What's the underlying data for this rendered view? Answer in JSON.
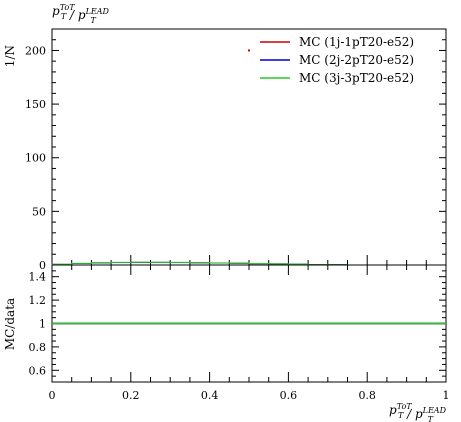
{
  "chart_data": [
    {
      "type": "line",
      "panel": "main",
      "title": "p_T^{ToT} / p_T^{LEAD}",
      "ylabel": "1/N",
      "ylim": [
        0,
        220
      ],
      "yticks": [
        0,
        50,
        100,
        150,
        200
      ],
      "xlim": [
        0,
        1
      ],
      "legend_position": "top-right",
      "series": [
        {
          "name": "MC (1j-1pT20-e52)",
          "color": "#cc0000",
          "x": [
            0.025,
            0.075,
            0.125,
            0.175,
            0.225,
            0.275,
            0.325,
            0.375,
            0.425,
            0.475,
            0.525,
            0.575,
            0.625,
            0.675,
            0.725
          ],
          "values": [
            0.6,
            1.4,
            2.0,
            2.3,
            2.5,
            2.4,
            2.3,
            2.1,
            1.9,
            1.6,
            1.3,
            1.0,
            0.7,
            0.4,
            0.2
          ]
        },
        {
          "name": "MC (2j-2pT20-e52)",
          "color": "#0000cc",
          "x": [
            0.025,
            0.075,
            0.125,
            0.175,
            0.225,
            0.275,
            0.325,
            0.375,
            0.425,
            0.475,
            0.525,
            0.575,
            0.625,
            0.675,
            0.725
          ],
          "values": [
            0.6,
            1.4,
            2.0,
            2.3,
            2.5,
            2.4,
            2.3,
            2.1,
            1.9,
            1.6,
            1.3,
            1.0,
            0.7,
            0.4,
            0.2
          ]
        },
        {
          "name": "MC (3j-3pT20-e52)",
          "color": "#22cc22",
          "x": [
            0.025,
            0.075,
            0.125,
            0.175,
            0.225,
            0.275,
            0.325,
            0.375,
            0.425,
            0.475,
            0.525,
            0.575,
            0.625,
            0.675,
            0.725
          ],
          "values": [
            0.6,
            1.5,
            2.1,
            2.4,
            2.6,
            2.5,
            2.4,
            2.2,
            2.0,
            1.7,
            1.4,
            1.0,
            0.7,
            0.4,
            0.2
          ]
        }
      ],
      "marker": {
        "x": 0.5,
        "y": 200,
        "color": "#cc0000"
      }
    },
    {
      "type": "line",
      "panel": "ratio",
      "ylabel": "MC/data",
      "xlabel": "p_T^{ToT} / p_T^{LEAD}",
      "ylim": [
        0.5,
        1.5
      ],
      "yticks": [
        0.6,
        0.8,
        1.0,
        1.2,
        1.4
      ],
      "ytick_labels": [
        "0.6",
        "0.8",
        "1",
        "1.2",
        "1.4"
      ],
      "xlim": [
        0,
        1
      ],
      "xticks": [
        0,
        0.2,
        0.4,
        0.6,
        0.8,
        1
      ],
      "xtick_labels": [
        "0",
        "0.2",
        "0.4",
        "0.6",
        "0.8",
        "1"
      ],
      "series": [
        {
          "name": "MC (1j-1pT20-e52)",
          "color": "#cc0000",
          "x": [
            0,
            1
          ],
          "values": [
            1,
            1
          ]
        },
        {
          "name": "MC (2j-2pT20-e52)",
          "color": "#0000cc",
          "x": [
            0,
            1
          ],
          "values": [
            1,
            1
          ]
        },
        {
          "name": "MC (3j-3pT20-e52)",
          "color": "#22cc22",
          "x": [
            0,
            1
          ],
          "values": [
            1,
            1
          ]
        }
      ]
    }
  ]
}
